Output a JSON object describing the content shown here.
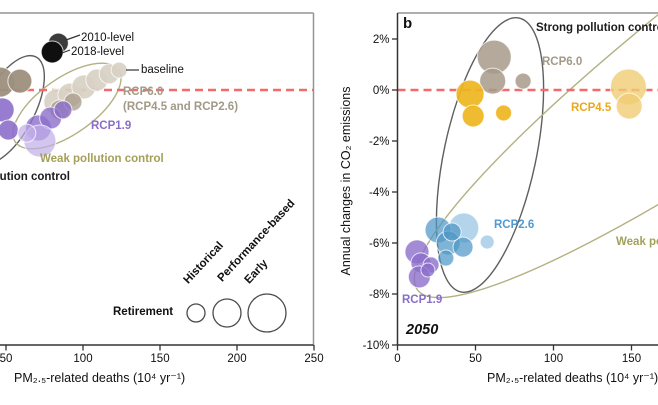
{
  "colors": {
    "red_dashed_line": "#f26a6a",
    "taupe": "#a79a88",
    "taupe_light": "#d8d0c3",
    "purple": "#8c6ecb",
    "purple_light": "#bfaee8",
    "yellow": "#eeb51f",
    "yellow_light": "#f0cd74",
    "blue": "#4f97c6",
    "blue_light": "#a6cde6",
    "olive_ellipse": "#b3b183",
    "dark_ellipse": "#5f5f5f",
    "frame_gray": "#949494",
    "axis_dark": "#333333"
  },
  "chart_data": [
    {
      "panel": "a",
      "type": "scatter-bubble",
      "xlabel": "PM₂.₅-related deaths (10⁴ yr⁻¹)",
      "ylabel": "",
      "x_ticks": [
        50,
        100,
        150,
        200,
        250
      ],
      "x_visible_range": [
        46,
        250
      ],
      "y_range_pct": [
        -10,
        3
      ],
      "zero_line_pct": 0,
      "grid": false,
      "annotations": {
        "level_2010": "2010-level",
        "level_2018": "2018-level",
        "baseline": "baseline",
        "rcp60_line1": "RCP6.0",
        "rcp60_line2": "(RCP4.5 and RCP2.6)",
        "rcp19": "RCP1.9",
        "weak": "Weak pollution control",
        "strong": "Strong pollution control"
      },
      "size_legend": {
        "title": "Retirement",
        "items": [
          {
            "label": "Historical",
            "r": 9
          },
          {
            "label": "Performance-based",
            "r": 14
          },
          {
            "label": "Early",
            "r": 19
          }
        ]
      },
      "series": [
        {
          "name": "baseline-weak-control",
          "color": "#d8d0c3",
          "opacity": 0.92,
          "points": [
            {
              "x": 83,
              "y": -0.47,
              "r": 13
            },
            {
              "x": 91.5,
              "y": -0.2,
              "r": 12
            },
            {
              "x": 100.5,
              "y": 0.12,
              "r": 12
            },
            {
              "x": 109,
              "y": 0.39,
              "r": 11
            },
            {
              "x": 117,
              "y": 0.63,
              "r": 10
            },
            {
              "x": 123.5,
              "y": 0.78,
              "r": 8
            }
          ]
        },
        {
          "name": "rcp60-weak-control",
          "color": "#a79a88",
          "opacity": 0.75,
          "points": [
            {
              "x": 85,
              "y": -0.78,
              "r": 10
            },
            {
              "x": 93.5,
              "y": -0.47,
              "r": 9
            }
          ]
        },
        {
          "name": "rcp60-strong-control",
          "color": "#9d8f7d",
          "opacity": 0.95,
          "points": [
            {
              "x": 46,
              "y": 0.31,
              "r": 15
            },
            {
              "x": 59,
              "y": 0.35,
              "r": 12
            }
          ]
        },
        {
          "name": "rcp19-strong-control",
          "color": "#8c6ecb",
          "opacity": 0.9,
          "points": [
            {
              "x": 47.5,
              "y": -0.78,
              "r": 12
            },
            {
              "x": 51.5,
              "y": -1.57,
              "r": 10
            }
          ]
        },
        {
          "name": "rcp19-weak-control",
          "color": "#8c6ecb",
          "opacity": 0.8,
          "points": [
            {
              "x": 71,
              "y": -1.49,
              "r": 13
            },
            {
              "x": 79,
              "y": -1.1,
              "r": 11
            },
            {
              "x": 87,
              "y": -0.78,
              "r": 9
            }
          ]
        },
        {
          "name": "rcp19-weak-control-light",
          "color": "#bfaee8",
          "opacity": 0.7,
          "points": [
            {
              "x": 72,
              "y": -2.0,
              "r": 16
            },
            {
              "x": 63.5,
              "y": -1.69,
              "r": 9
            }
          ]
        },
        {
          "name": "2010-level",
          "color": "#3c3c3c",
          "opacity": 1,
          "points": [
            {
              "x": 84,
              "y": 1.84,
              "r": 10
            }
          ]
        },
        {
          "name": "2018-level",
          "color": "#0f0f0f",
          "opacity": 1,
          "points": [
            {
              "x": 80,
              "y": 1.49,
              "r": 11
            }
          ]
        }
      ]
    },
    {
      "panel": "b",
      "type": "scatter-bubble",
      "panel_tag": "b",
      "year_annotation": "2050",
      "xlabel": "PM₂.₅-related deaths (10⁴ yr⁻¹)",
      "ylabel": "Annual changes in CO₂ emissions",
      "x_ticks": [
        0,
        50,
        100,
        150
      ],
      "x_visible_range": [
        0,
        167
      ],
      "y_ticks": [
        {
          "label": "2%",
          "value": 2
        },
        {
          "label": "0%",
          "value": 0
        },
        {
          "label": "-2%",
          "value": -2
        },
        {
          "label": "-4%",
          "value": -4
        },
        {
          "label": "-6%",
          "value": -6
        },
        {
          "label": "-8%",
          "value": -8
        },
        {
          "label": "-10%",
          "value": -10
        }
      ],
      "y_range_pct": [
        -10,
        3
      ],
      "zero_line_pct": 0,
      "grid": false,
      "annotations": {
        "strong": "Strong pollution control",
        "rcp60": "RCP6.0",
        "rcp45": "RCP4.5",
        "rcp26": "RCP2.6",
        "rcp19": "RCP1.9",
        "weak": "Weak pollution control",
        "year": "2050"
      },
      "series": [
        {
          "name": "rcp60-strong-control",
          "color": "#a79a88",
          "opacity": 0.85,
          "points": [
            {
              "x": 62,
              "y": 1.29,
              "r": 17
            },
            {
              "x": 61,
              "y": 0.35,
              "r": 13
            },
            {
              "x": 80.5,
              "y": 0.35,
              "r": 8
            }
          ]
        },
        {
          "name": "rcp45-strong-control",
          "color": "#eeb51f",
          "opacity": 0.92,
          "points": [
            {
              "x": 46.5,
              "y": -0.16,
              "r": 14
            },
            {
              "x": 48.5,
              "y": -1.02,
              "r": 11
            },
            {
              "x": 68,
              "y": -0.9,
              "r": 8
            }
          ]
        },
        {
          "name": "rcp45-weak-control",
          "color": "#f0cd74",
          "opacity": 0.8,
          "points": [
            {
              "x": 148,
              "y": 0.12,
              "r": 18
            },
            {
              "x": 148.5,
              "y": -0.63,
              "r": 13
            }
          ]
        },
        {
          "name": "rcp26-light",
          "color": "#a6cde6",
          "opacity": 0.85,
          "points": [
            {
              "x": 42.5,
              "y": -5.41,
              "r": 15
            },
            {
              "x": 57.5,
              "y": -5.96,
              "r": 7
            }
          ]
        },
        {
          "name": "rcp26",
          "color": "#4f97c6",
          "opacity": 0.72,
          "points": [
            {
              "x": 26,
              "y": -5.49,
              "r": 13
            },
            {
              "x": 32.5,
              "y": -6.0,
              "r": 12
            },
            {
              "x": 42,
              "y": -6.16,
              "r": 10
            },
            {
              "x": 31,
              "y": -6.59,
              "r": 8
            },
            {
              "x": 35,
              "y": -5.57,
              "r": 9
            }
          ]
        },
        {
          "name": "rcp19",
          "color": "#8c6ecb",
          "opacity": 0.8,
          "points": [
            {
              "x": 12.5,
              "y": -6.35,
              "r": 12
            },
            {
              "x": 15,
              "y": -6.78,
              "r": 10
            },
            {
              "x": 21.5,
              "y": -6.86,
              "r": 8
            },
            {
              "x": 14,
              "y": -7.33,
              "r": 11
            },
            {
              "x": 19.5,
              "y": -7.06,
              "r": 7
            }
          ]
        }
      ]
    }
  ]
}
